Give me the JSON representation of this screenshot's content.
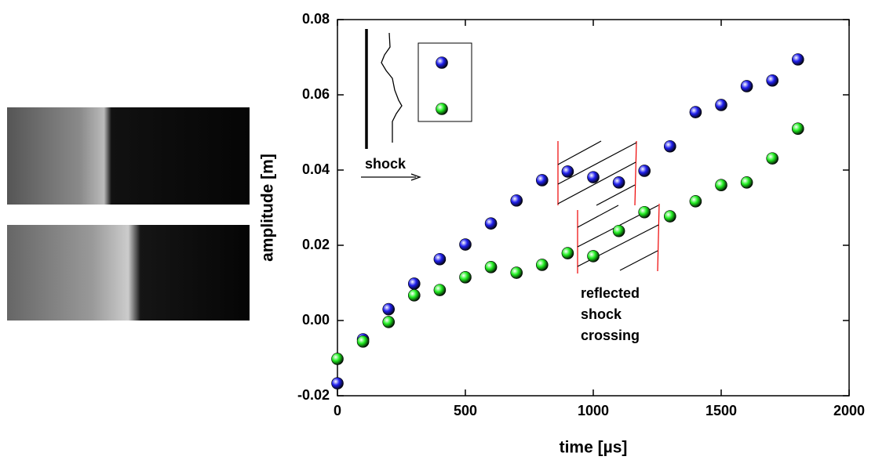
{
  "chart_data": {
    "type": "scatter",
    "xlabel": "time [µs]",
    "ylabel": "amplitude [m]",
    "xlim": [
      0,
      2000
    ],
    "xticks": [
      0,
      500,
      1000,
      1500,
      2000
    ],
    "ylim": [
      -0.02,
      0.08
    ],
    "yticks": [
      {
        "value": -0.02,
        "label": "-0.02"
      },
      {
        "value": 0,
        "label": "0.00"
      },
      {
        "value": 0.02,
        "label": "0.02"
      },
      {
        "value": 0.04,
        "label": "0.04"
      },
      {
        "value": 0.06,
        "label": "0.06"
      },
      {
        "value": 0.08,
        "label": "0.08"
      }
    ],
    "annotations": [
      "shock",
      "reflected",
      "shock",
      "crossing"
    ],
    "series": [
      {
        "color": "#2020ee",
        "x": [
          0,
          100,
          200,
          300,
          400,
          500,
          600,
          700,
          800,
          900,
          1000,
          1100,
          1200,
          1300,
          1400,
          1500,
          1600,
          1700,
          1800
        ],
        "values": [
          -0.0167,
          -0.005,
          0.003,
          0.0098,
          0.0163,
          0.0202,
          0.0258,
          0.0319,
          0.0373,
          0.0396,
          0.0381,
          0.0367,
          0.0398,
          0.0463,
          0.0554,
          0.0573,
          0.0623,
          0.0638,
          0.0694
        ]
      },
      {
        "color": "#22ee22",
        "x": [
          0,
          100,
          200,
          300,
          400,
          500,
          600,
          700,
          800,
          900,
          1000,
          1100,
          1200,
          1300,
          1400,
          1500,
          1600,
          1700,
          1800
        ],
        "values": [
          -0.0102,
          -0.0056,
          -0.0004,
          0.0067,
          0.0081,
          0.0115,
          0.0142,
          0.0127,
          0.0148,
          0.0179,
          0.0171,
          0.0238,
          0.0288,
          0.0277,
          0.0317,
          0.036,
          0.0367,
          0.0431,
          0.051
        ]
      }
    ]
  }
}
